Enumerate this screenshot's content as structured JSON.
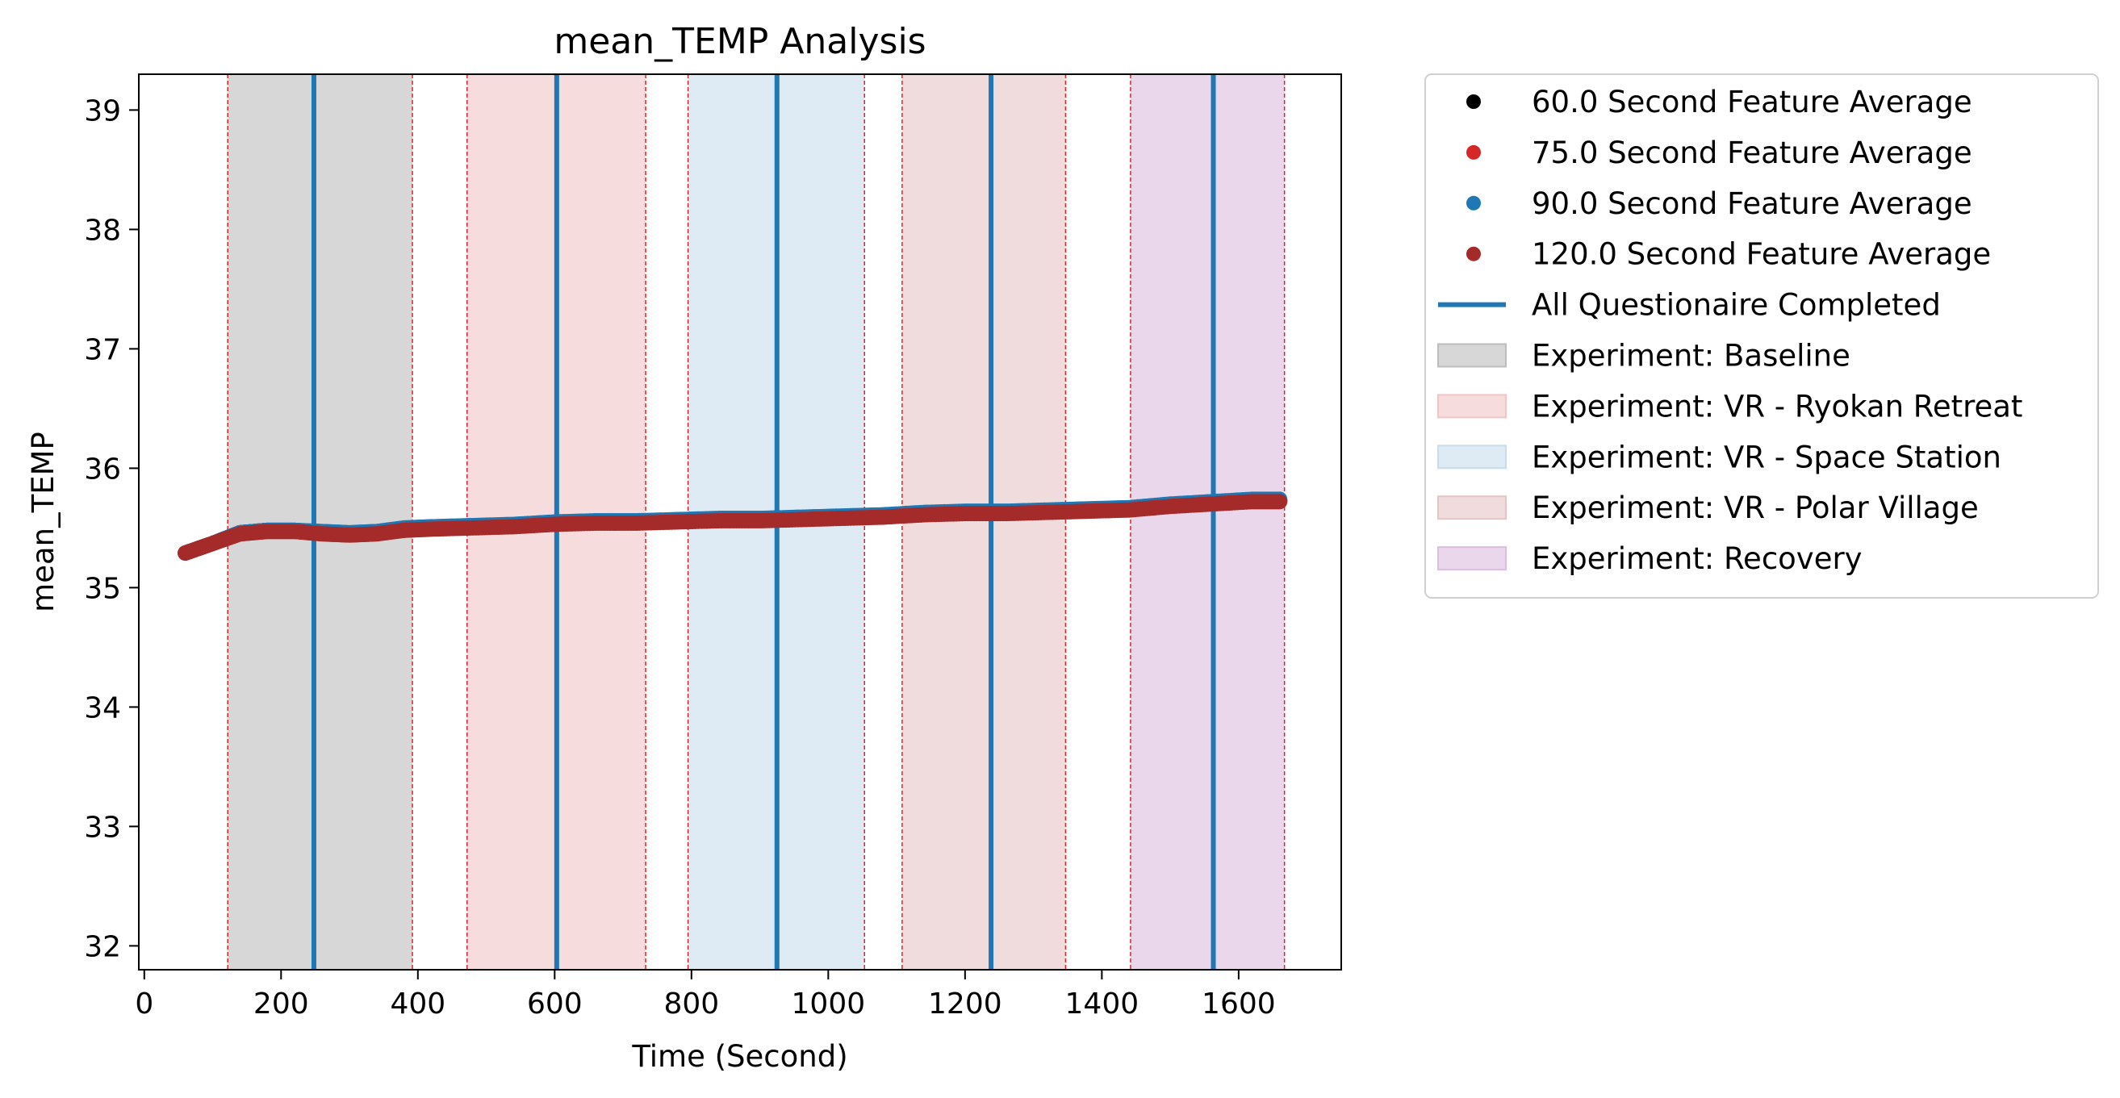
{
  "chart_data": {
    "type": "scatter",
    "title": "mean_TEMP Analysis",
    "xlabel": "Time (Second)",
    "ylabel": "mean_TEMP",
    "xlim": [
      -8,
      1750
    ],
    "ylim": [
      31.8,
      39.3
    ],
    "xticks": [
      0,
      200,
      400,
      600,
      800,
      1000,
      1200,
      1400,
      1600
    ],
    "yticks": [
      32,
      33,
      34,
      35,
      36,
      37,
      38,
      39
    ],
    "grid": false,
    "legend_position": "outside-right",
    "series": [
      {
        "name": "60.0 Second Feature Average",
        "color": "#000000",
        "x": [
          60,
          100,
          140,
          180,
          220,
          260,
          300,
          340,
          380,
          420,
          480,
          540,
          600,
          660,
          720,
          780,
          840,
          900,
          960,
          1020,
          1080,
          1140,
          1200,
          1260,
          1320,
          1380,
          1440,
          1500,
          1560,
          1620,
          1660
        ],
        "y": [
          35.29,
          35.37,
          35.46,
          35.48,
          35.48,
          35.46,
          35.45,
          35.46,
          35.49,
          35.5,
          35.51,
          35.52,
          35.54,
          35.55,
          35.55,
          35.56,
          35.57,
          35.57,
          35.58,
          35.59,
          35.6,
          35.62,
          35.63,
          35.63,
          35.64,
          35.65,
          35.66,
          35.69,
          35.71,
          35.73,
          35.73
        ]
      },
      {
        "name": "75.0 Second Feature Average",
        "color": "#d62728",
        "x": [
          60,
          100,
          140,
          180,
          220,
          260,
          300,
          340,
          380,
          420,
          480,
          540,
          600,
          660,
          720,
          780,
          840,
          900,
          960,
          1020,
          1080,
          1140,
          1200,
          1260,
          1320,
          1380,
          1440,
          1500,
          1560,
          1620,
          1660
        ],
        "y": [
          35.29,
          35.37,
          35.46,
          35.48,
          35.48,
          35.46,
          35.45,
          35.46,
          35.49,
          35.5,
          35.51,
          35.52,
          35.54,
          35.55,
          35.55,
          35.56,
          35.57,
          35.57,
          35.58,
          35.59,
          35.6,
          35.62,
          35.63,
          35.63,
          35.64,
          35.65,
          35.66,
          35.69,
          35.71,
          35.73,
          35.73
        ]
      },
      {
        "name": "90.0 Second Feature Average",
        "color": "#1f77b4",
        "x": [
          60,
          100,
          140,
          180,
          220,
          260,
          300,
          340,
          380,
          420,
          480,
          540,
          600,
          660,
          720,
          780,
          840,
          900,
          960,
          1020,
          1080,
          1140,
          1200,
          1260,
          1320,
          1380,
          1440,
          1500,
          1560,
          1620,
          1660
        ],
        "y": [
          35.29,
          35.37,
          35.46,
          35.48,
          35.48,
          35.47,
          35.46,
          35.47,
          35.5,
          35.51,
          35.52,
          35.53,
          35.55,
          35.56,
          35.56,
          35.57,
          35.58,
          35.58,
          35.59,
          35.6,
          35.61,
          35.63,
          35.64,
          35.64,
          35.65,
          35.66,
          35.67,
          35.7,
          35.72,
          35.74,
          35.74
        ]
      },
      {
        "name": "120.0 Second Feature Average",
        "color": "#a52a2a",
        "x": [
          60,
          100,
          140,
          180,
          220,
          260,
          300,
          340,
          380,
          420,
          480,
          540,
          600,
          660,
          720,
          780,
          840,
          900,
          960,
          1020,
          1080,
          1140,
          1200,
          1260,
          1320,
          1380,
          1440,
          1500,
          1560,
          1620,
          1660
        ],
        "y": [
          35.29,
          35.37,
          35.45,
          35.47,
          35.47,
          35.45,
          35.44,
          35.45,
          35.48,
          35.49,
          35.5,
          35.51,
          35.53,
          35.54,
          35.54,
          35.55,
          35.56,
          35.56,
          35.57,
          35.58,
          35.59,
          35.61,
          35.62,
          35.62,
          35.63,
          35.64,
          35.65,
          35.68,
          35.7,
          35.72,
          35.72
        ]
      }
    ],
    "questionnaire": {
      "name": "All Questionaire Completed",
      "color": "#1f77b4",
      "x": [
        248,
        603,
        925,
        1238,
        1563
      ]
    },
    "phases": [
      {
        "name": "Experiment: Baseline",
        "start": 122,
        "end": 392,
        "color": "#bdbdbd"
      },
      {
        "name": "Experiment: VR - Ryokan Retreat",
        "start": 472,
        "end": 733,
        "color": "#f2c4c6"
      },
      {
        "name": "Experiment: VR - Space Station",
        "start": 795,
        "end": 1053,
        "color": "#c8dcec"
      },
      {
        "name": "Experiment: VR - Polar Village",
        "start": 1108,
        "end": 1347,
        "color": "#e6c4c4"
      },
      {
        "name": "Experiment: Recovery",
        "start": 1442,
        "end": 1667,
        "color": "#dcbde0"
      }
    ]
  }
}
